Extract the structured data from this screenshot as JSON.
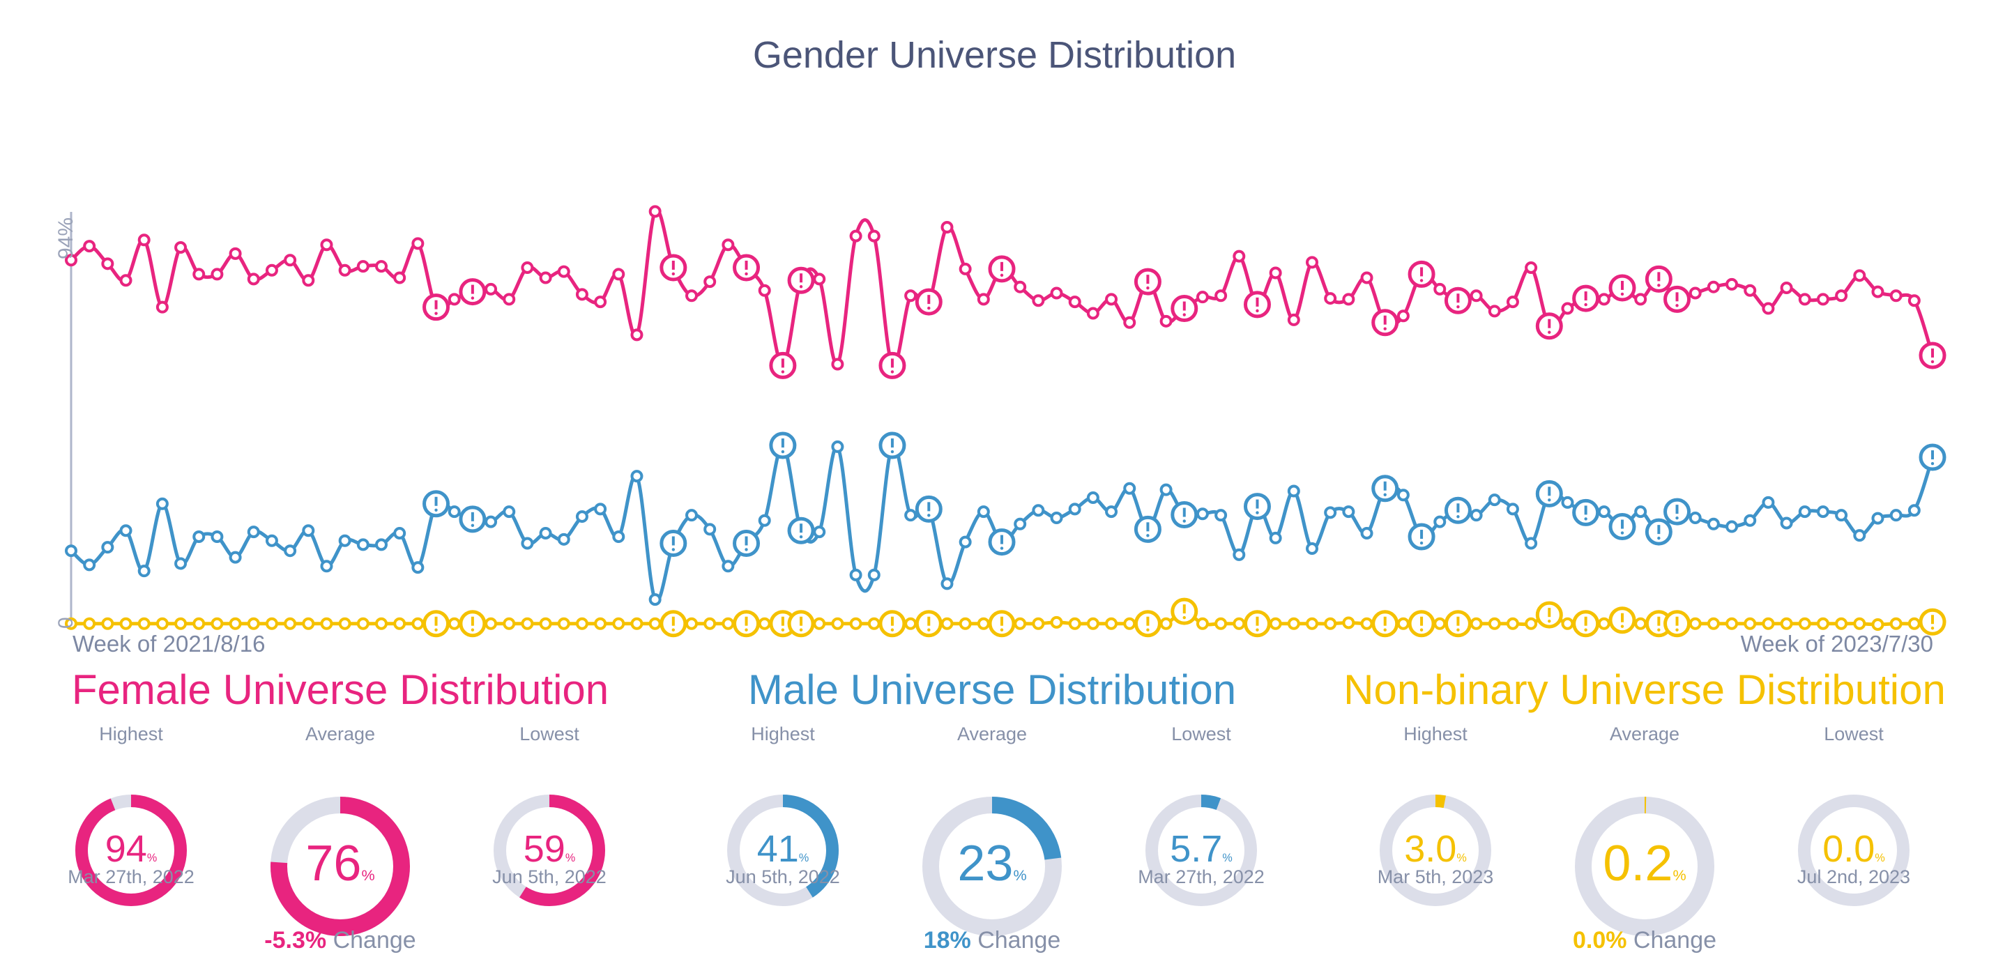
{
  "title": "Gender Universe Distribution",
  "colors": {
    "female": "#e8247f",
    "male": "#3f93c9",
    "nonbinary": "#f5c100",
    "track": "#dcdee9",
    "axis": "#aeb6cb"
  },
  "chart_data": {
    "type": "line",
    "title": "Gender Universe Distribution",
    "y_tick_labels": [
      "94%",
      "0"
    ],
    "ylim": [
      0,
      94
    ],
    "x_start_label": "Week of 2021/8/16",
    "x_end_label": "Week of 2023/7/30",
    "grid": false,
    "anomaly_indices": [
      20,
      22,
      33,
      37,
      39,
      40,
      45,
      47,
      51,
      59,
      61,
      65,
      72,
      74,
      76,
      81,
      83,
      85,
      87,
      88,
      102
    ],
    "series": [
      {
        "key": "female",
        "values": [
          83.0,
          86.2,
          82.2,
          78.4,
          87.6,
          72.3,
          85.9,
          79.8,
          79.8,
          84.5,
          78.7,
          80.7,
          83.0,
          78.4,
          86.5,
          80.7,
          81.6,
          81.6,
          79.0,
          86.8,
          72.3,
          74.1,
          75.8,
          76.4,
          74.1,
          81.3,
          79.0,
          80.4,
          75.2,
          73.5,
          79.8,
          66.0,
          94.1,
          81.3,
          74.9,
          78.1,
          86.5,
          81.3,
          76.1,
          59.0,
          78.4,
          78.7,
          59.3,
          88.5,
          88.5,
          59.0,
          74.9,
          73.5,
          90.5,
          81.0,
          74.1,
          81.0,
          76.9,
          73.8,
          75.5,
          73.5,
          70.9,
          74.1,
          68.8,
          78.1,
          69.1,
          72.0,
          74.6,
          74.9,
          83.9,
          72.9,
          80.1,
          69.4,
          82.5,
          74.3,
          74.1,
          79.0,
          68.8,
          70.3,
          79.8,
          76.4,
          73.8,
          74.9,
          71.4,
          73.5,
          81.3,
          68.0,
          72.0,
          74.3,
          74.1,
          76.7,
          74.1,
          78.7,
          74.1,
          75.5,
          76.9,
          77.5,
          76.1,
          72.0,
          76.7,
          74.1,
          74.1,
          74.9,
          79.5,
          75.8,
          74.9,
          73.8,
          61.3
        ]
      },
      {
        "key": "male",
        "values": [
          16.8,
          13.6,
          17.6,
          21.4,
          12.2,
          27.5,
          13.9,
          20.0,
          20.0,
          15.3,
          21.1,
          19.1,
          16.8,
          21.4,
          13.3,
          19.1,
          18.2,
          18.2,
          20.8,
          13.0,
          27.5,
          25.7,
          24.0,
          23.4,
          25.7,
          18.5,
          20.8,
          19.4,
          24.6,
          26.3,
          20.0,
          33.8,
          5.7,
          18.5,
          24.9,
          21.7,
          13.3,
          18.5,
          23.7,
          40.8,
          21.4,
          21.1,
          40.5,
          11.3,
          11.3,
          40.8,
          24.9,
          26.3,
          9.3,
          18.8,
          25.7,
          18.8,
          22.9,
          26.0,
          24.3,
          26.3,
          28.9,
          25.7,
          31.0,
          21.7,
          30.7,
          25.0,
          25.2,
          24.9,
          15.9,
          26.9,
          19.7,
          30.4,
          17.3,
          25.5,
          25.7,
          20.8,
          31.0,
          29.5,
          20.0,
          23.4,
          26.0,
          24.9,
          28.4,
          26.3,
          18.5,
          29.8,
          27.8,
          25.5,
          25.7,
          22.3,
          25.7,
          21.1,
          25.7,
          24.3,
          22.9,
          22.3,
          23.7,
          27.8,
          23.1,
          25.7,
          25.7,
          24.9,
          20.3,
          24.2,
          24.9,
          26.0,
          38.1
        ]
      },
      {
        "key": "nonbinary",
        "values": [
          0.2,
          0.2,
          0.2,
          0.2,
          0.2,
          0.2,
          0.2,
          0.2,
          0.2,
          0.2,
          0.2,
          0.2,
          0.2,
          0.2,
          0.2,
          0.2,
          0.2,
          0.2,
          0.2,
          0.2,
          0.2,
          0.2,
          0.2,
          0.2,
          0.2,
          0.2,
          0.2,
          0.2,
          0.2,
          0.2,
          0.2,
          0.2,
          0.2,
          0.2,
          0.2,
          0.2,
          0.2,
          0.2,
          0.2,
          0.2,
          0.2,
          0.2,
          0.2,
          0.2,
          0.2,
          0.2,
          0.2,
          0.2,
          0.2,
          0.2,
          0.2,
          0.2,
          0.2,
          0.2,
          0.5,
          0.2,
          0.2,
          0.2,
          0.2,
          0.2,
          0.2,
          3.0,
          0.2,
          0.2,
          0.2,
          0.2,
          0.2,
          0.2,
          0.2,
          0.2,
          0.4,
          0.2,
          0.2,
          0.2,
          0.2,
          0.2,
          0.2,
          0.2,
          0.2,
          0.2,
          0.2,
          2.2,
          0.2,
          0.2,
          0.2,
          1.0,
          0.2,
          0.2,
          0.2,
          0.2,
          0.2,
          0.2,
          0.2,
          0.2,
          0.2,
          0.2,
          0.2,
          0.2,
          0.2,
          0.0,
          0.2,
          0.2,
          0.6
        ]
      }
    ]
  },
  "summary": {
    "highest_label": "Highest",
    "average_label": "Average",
    "lowest_label": "Lowest",
    "pct": "%",
    "change_suffix": "Change",
    "female": {
      "title": "Female Universe Distribution",
      "highest": "94",
      "highest_date": "Mar 27th, 2022",
      "highest_fraction": 0.94,
      "average": "76",
      "average_fraction": 0.76,
      "lowest": "59",
      "lowest_date": "Jun 5th, 2022",
      "lowest_fraction": 0.59,
      "change": "-5.3%"
    },
    "male": {
      "title": "Male Universe Distribution",
      "highest": "41",
      "highest_date": "Jun 5th, 2022",
      "highest_fraction": 0.41,
      "average": "23",
      "average_fraction": 0.23,
      "lowest": "5.7",
      "lowest_date": "Mar 27th, 2022",
      "lowest_fraction": 0.057,
      "change": "18%"
    },
    "nonbinary": {
      "title": "Non-binary Universe Distribution",
      "highest": "3.0",
      "highest_date": "Mar 5th, 2023",
      "highest_fraction": 0.03,
      "average": "0.2",
      "average_fraction": 0.002,
      "lowest": "0.0",
      "lowest_date": "Jul 2nd, 2023",
      "lowest_fraction": 0.0,
      "change": "0.0%"
    }
  }
}
